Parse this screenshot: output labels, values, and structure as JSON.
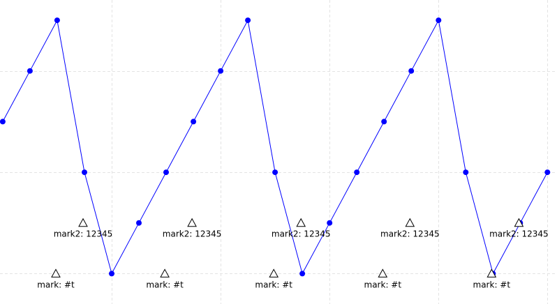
{
  "chart_data": {
    "type": "line",
    "xlim": [
      -0.1,
      20.35
    ],
    "ylim": [
      -1.6,
      4.4
    ],
    "x": [
      0,
      1,
      2,
      3,
      4,
      5,
      6,
      7,
      8,
      9,
      10,
      11,
      12,
      13,
      14,
      15,
      16,
      17,
      18,
      19,
      20
    ],
    "series": [
      {
        "values": [
          2,
          3,
          4,
          1,
          -1,
          0,
          1,
          2,
          3,
          4,
          1,
          -1,
          0,
          1,
          2,
          3,
          4,
          1,
          -1,
          0,
          1
        ],
        "color": "#0000ff",
        "marker": "circle"
      }
    ],
    "grid": true,
    "annotations": [
      {
        "x": 1.95,
        "y": -1,
        "text": "mark: #t"
      },
      {
        "x": 5.95,
        "y": -1,
        "text": "mark: #t"
      },
      {
        "x": 9.95,
        "y": -1,
        "text": "mark: #t"
      },
      {
        "x": 13.95,
        "y": -1,
        "text": "mark: #t"
      },
      {
        "x": 17.95,
        "y": -1,
        "text": "mark: #t"
      },
      {
        "x": 2.95,
        "y": 0,
        "text": "mark2: 12345"
      },
      {
        "x": 6.95,
        "y": 0,
        "text": "mark2: 12345"
      },
      {
        "x": 10.95,
        "y": 0,
        "text": "mark2: 12345"
      },
      {
        "x": 14.95,
        "y": 0,
        "text": "mark2: 12345"
      },
      {
        "x": 18.95,
        "y": 0,
        "text": "mark2: 12345"
      }
    ],
    "marker_color": "#0000ff",
    "annotation_marker": "triangle"
  }
}
